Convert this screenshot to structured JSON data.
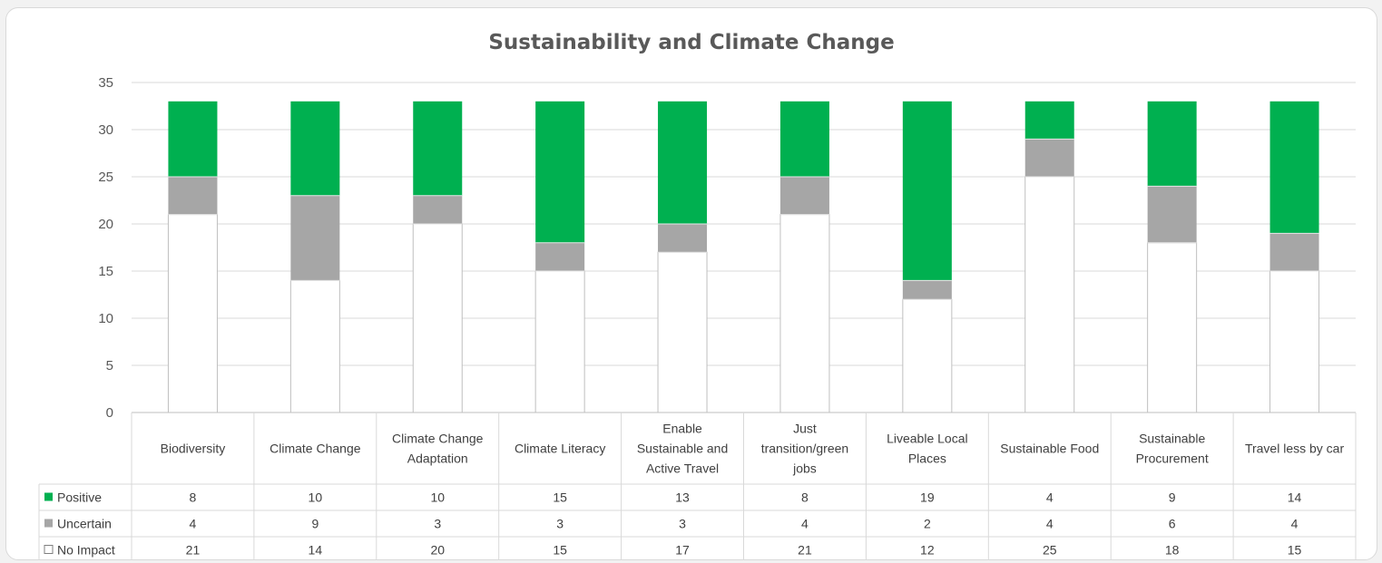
{
  "chart_data": {
    "type": "bar",
    "stacked": true,
    "title": "Sustainability and Climate Change",
    "xlabel": "",
    "ylabel": "",
    "ylim": [
      0,
      35
    ],
    "yticks": [
      0,
      5,
      10,
      15,
      20,
      25,
      30,
      35
    ],
    "grid": true,
    "legend": "data-table-left",
    "categories": [
      [
        "Biodiversity"
      ],
      [
        "Climate Change"
      ],
      [
        "Climate Change",
        "Adaptation"
      ],
      [
        "Climate Literacy"
      ],
      [
        "Enable",
        "Sustainable and",
        "Active Travel"
      ],
      [
        "Just",
        "transition/green",
        "jobs"
      ],
      [
        "Liveable Local",
        "Places"
      ],
      [
        "Sustainable Food"
      ],
      [
        "Sustainable",
        "Procurement"
      ],
      [
        "Travel less by car"
      ]
    ],
    "series": [
      {
        "name": "No Impact",
        "color": "#ffffff",
        "values": [
          21,
          14,
          20,
          15,
          17,
          21,
          12,
          25,
          18,
          15
        ]
      },
      {
        "name": "Uncertain",
        "color": "#a6a6a6",
        "values": [
          4,
          9,
          3,
          3,
          3,
          4,
          2,
          4,
          6,
          4
        ]
      },
      {
        "name": "Positive",
        "color": "#00b050",
        "values": [
          8,
          10,
          10,
          15,
          13,
          8,
          19,
          4,
          9,
          14
        ]
      }
    ],
    "table_rows": [
      "Positive",
      "Uncertain",
      "No Impact"
    ]
  }
}
